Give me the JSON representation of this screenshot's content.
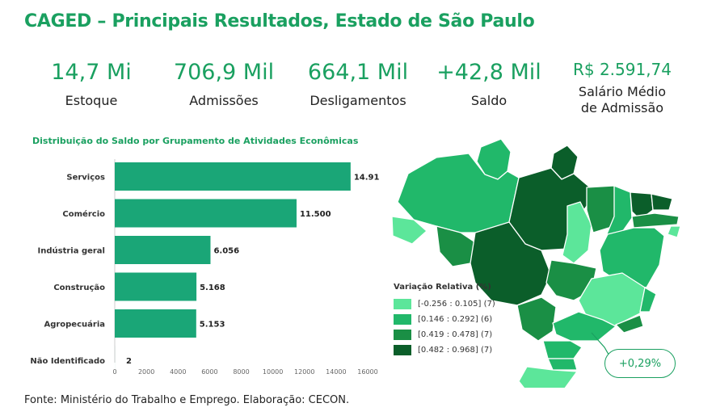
{
  "header": {
    "title": "CAGED – Principais Resultados, Estado de São Paulo"
  },
  "kpis": [
    {
      "value": "14,7 Mi",
      "label": "Estoque"
    },
    {
      "value": "706,9 Mil",
      "label": "Admissões"
    },
    {
      "value": "664,1 Mil",
      "label": "Desligamentos"
    },
    {
      "value": "+42,8 Mil",
      "label": "Saldo"
    },
    {
      "value": "R$ 2.591,74",
      "label_line1": "Salário Médio",
      "label_line2": "de Admissão"
    }
  ],
  "chart_data": {
    "type": "bar",
    "orientation": "horizontal",
    "title": "Distribuição do Saldo por Grupamento de Atividades Econômicas",
    "categories": [
      "Serviços",
      "Comércio",
      "Indústria geral",
      "Construção",
      "Agropecuária",
      "Não Identificado"
    ],
    "values": [
      14919,
      11500,
      6056,
      5168,
      5153,
      2
    ],
    "value_labels": [
      "14.919",
      "11.500",
      "6.056",
      "5.168",
      "5.153",
      "2"
    ],
    "xlim": [
      0,
      16000
    ],
    "xticks": [
      0,
      2000,
      4000,
      6000,
      8000,
      10000,
      12000,
      14000,
      16000
    ],
    "xtick_labels": [
      "0",
      "2000",
      "4000",
      "6000",
      "8000",
      "10000",
      "12000",
      "14000",
      "16000"
    ],
    "bar_color": "#1aa677",
    "grid": false
  },
  "map": {
    "legend_title": "Variação Relativa (%)",
    "legend": [
      {
        "label": "[-0.256 : 0.105] (7)",
        "color": "#5ce69a"
      },
      {
        "label": "[0.146 : 0.292] (6)",
        "color": "#21b86a"
      },
      {
        "label": "[0.419 : 0.478] (7)",
        "color": "#1a8f45"
      },
      {
        "label": "[0.482 : 0.968] (7)",
        "color": "#0b5e2a"
      }
    ],
    "callout": "+0,29%"
  },
  "footer": {
    "source": "Fonte: Ministério do Trabalho e Emprego. Elaboração: CECON."
  }
}
